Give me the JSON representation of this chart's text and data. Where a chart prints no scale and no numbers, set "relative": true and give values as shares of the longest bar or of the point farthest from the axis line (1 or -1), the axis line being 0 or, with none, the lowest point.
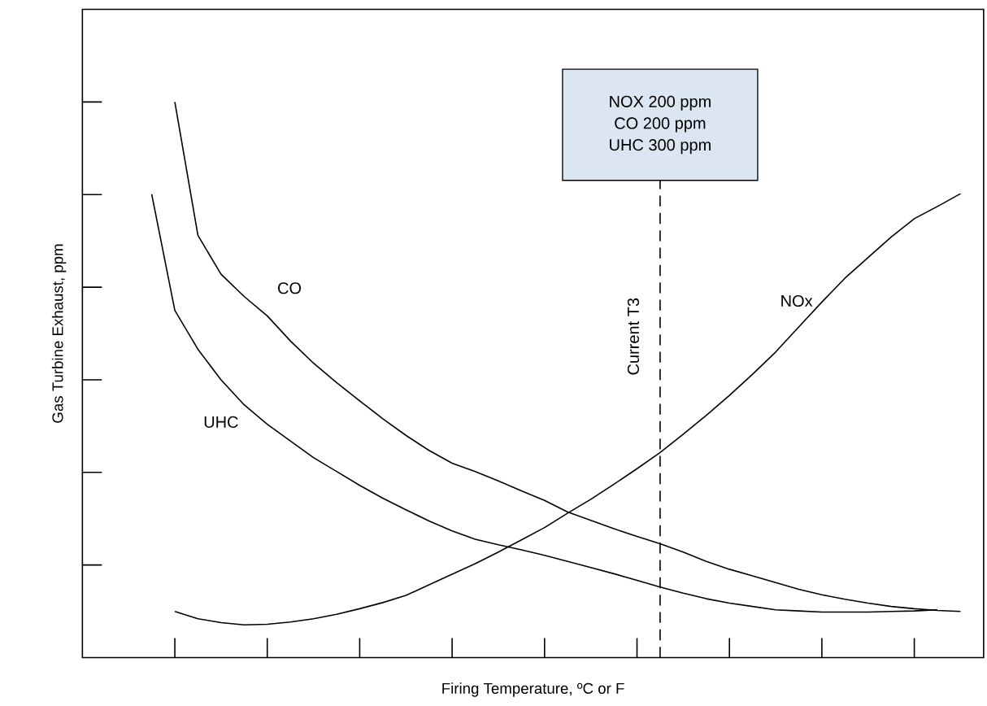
{
  "chart_data": {
    "type": "line",
    "relative": true,
    "xlabel": "Firing Temperature, ºC or F",
    "ylabel": "Gas Turbine Exhaust, ppm",
    "categories": [
      null,
      null,
      null,
      null,
      null,
      null,
      null,
      null,
      null,
      null,
      null,
      null,
      null,
      null,
      null,
      null,
      null,
      null,
      null,
      null,
      null,
      null,
      null,
      null,
      null,
      null,
      null,
      null,
      null,
      null,
      null,
      null,
      null,
      null,
      null,
      null
    ],
    "series": [
      {
        "name": "CO",
        "color": "#000000",
        "values": [
          null,
          1.0,
          0.76,
          0.69,
          0.65,
          0.615,
          0.57,
          0.53,
          0.495,
          0.462,
          0.43,
          0.4,
          0.373,
          0.35,
          0.335,
          0.318,
          0.3,
          0.283,
          0.262,
          0.247,
          0.232,
          0.218,
          0.205,
          0.19,
          0.173,
          0.159,
          0.147,
          0.135,
          0.123,
          0.113,
          0.105,
          0.098,
          0.092,
          0.088,
          0.085,
          0.083
        ]
      },
      {
        "name": "UHC",
        "color": "#000000",
        "values": [
          0.834,
          0.625,
          0.555,
          0.5,
          0.455,
          0.42,
          0.39,
          0.36,
          0.335,
          0.31,
          0.287,
          0.266,
          0.246,
          0.228,
          0.213,
          0.203,
          0.194,
          0.184,
          0.173,
          0.162,
          0.151,
          0.139,
          0.127,
          0.116,
          0.106,
          0.098,
          0.092,
          0.086,
          0.084,
          0.082,
          0.082,
          0.082,
          0.083,
          0.084,
          0.086,
          null
        ]
      },
      {
        "name": "NOx",
        "color": "#000000",
        "values": [
          null,
          0.083,
          0.07,
          0.063,
          0.059,
          0.06,
          0.064,
          0.07,
          0.078,
          0.088,
          0.099,
          0.112,
          0.131,
          0.15,
          0.169,
          0.19,
          0.212,
          0.234,
          0.26,
          0.285,
          0.312,
          0.34,
          0.369,
          0.402,
          0.436,
          0.472,
          0.51,
          0.55,
          0.595,
          0.64,
          0.683,
          0.72,
          0.757,
          0.79,
          0.812,
          0.835
        ]
      }
    ],
    "annotations": [
      "Current T3",
      "NOX 200 ppm",
      "CO 200 ppm",
      "UHC 300 ppm"
    ]
  }
}
